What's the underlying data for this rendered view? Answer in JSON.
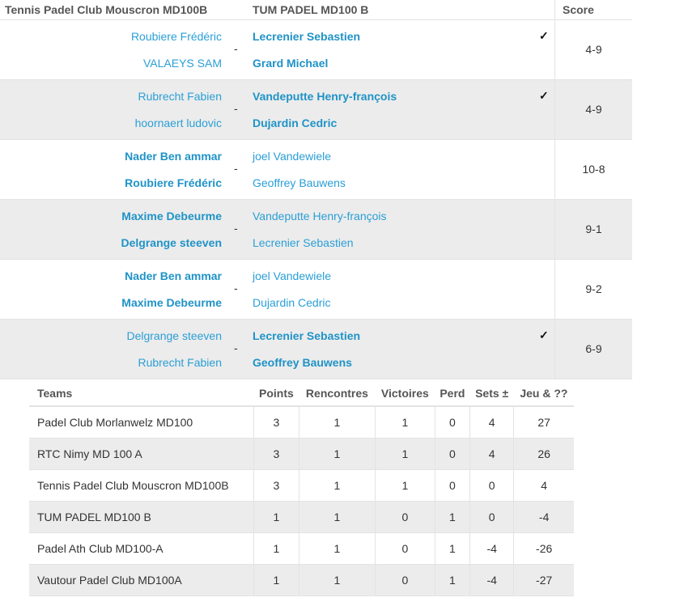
{
  "matches_header": {
    "home_team": "Tennis Padel Club Mouscron MD100B",
    "away_team": "TUM PADEL MD100 B",
    "score": "Score"
  },
  "matches": [
    {
      "home": [
        "Roubiere Frédéric",
        "VALAEYS SAM"
      ],
      "away": [
        "Lecrenier Sebastien",
        "Grard Michael"
      ],
      "winner": "away",
      "score": "4-9",
      "checked": true
    },
    {
      "home": [
        "Rubrecht Fabien",
        "hoornaert ludovic"
      ],
      "away": [
        "Vandeputte Henry-françois",
        "Dujardin Cedric"
      ],
      "winner": "away",
      "score": "4-9",
      "checked": true
    },
    {
      "home": [
        "Nader Ben ammar",
        "Roubiere Frédéric"
      ],
      "away": [
        "joel Vandewiele",
        "Geoffrey Bauwens"
      ],
      "winner": "home",
      "score": "10-8",
      "checked": false
    },
    {
      "home": [
        "Maxime Debeurme",
        "Delgrange steeven"
      ],
      "away": [
        "Vandeputte Henry-françois",
        "Lecrenier Sebastien"
      ],
      "winner": "home",
      "score": "9-1",
      "checked": false
    },
    {
      "home": [
        "Nader Ben ammar",
        "Maxime Debeurme"
      ],
      "away": [
        "joel Vandewiele",
        "Dujardin Cedric"
      ],
      "winner": "home",
      "score": "9-2",
      "checked": false
    },
    {
      "home": [
        "Delgrange steeven",
        "Rubrecht Fabien"
      ],
      "away": [
        "Lecrenier Sebastien",
        "Geoffrey Bauwens"
      ],
      "winner": "away",
      "score": "6-9",
      "checked": true
    }
  ],
  "dash": "-",
  "check_symbol": "✓",
  "standings": {
    "columns": [
      "Teams",
      "Points",
      "Rencontres",
      "Victoires",
      "Perd",
      "Sets ±",
      "Jeu & ??"
    ],
    "rows": [
      [
        "Padel Club Morlanwelz MD100",
        "3",
        "1",
        "1",
        "0",
        "4",
        "27"
      ],
      [
        "RTC Nimy MD 100 A",
        "3",
        "1",
        "1",
        "0",
        "4",
        "26"
      ],
      [
        "Tennis Padel Club Mouscron MD100B",
        "3",
        "1",
        "1",
        "0",
        "0",
        "4"
      ],
      [
        "TUM PADEL MD100 B",
        "1",
        "1",
        "0",
        "1",
        "0",
        "-4"
      ],
      [
        "Padel Ath Club MD100-A",
        "1",
        "1",
        "0",
        "1",
        "-4",
        "-26"
      ],
      [
        "Vautour Padel Club MD100A",
        "1",
        "1",
        "0",
        "1",
        "-4",
        "-27"
      ]
    ]
  }
}
